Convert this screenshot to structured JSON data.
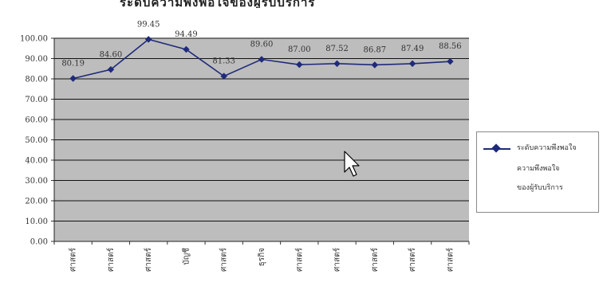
{
  "chart_data": {
    "type": "line",
    "title": "ระดับความพึงพอใจของผู้รับบริการ",
    "categories": [
      "ศาสตร์",
      "ศาสตร์",
      "ศาสตร์",
      "บัญชี",
      "ศาสตร์",
      "ธุรกิจ",
      "ศาสตร์",
      "ศาสตร์",
      "ศาสตร์",
      "ศาสตร์",
      "ศาสตร์"
    ],
    "series": [
      {
        "name": "ระดับความพึงพอใจของผู้รับบริการ",
        "values": [
          80.19,
          84.6,
          99.45,
          94.49,
          81.33,
          89.6,
          87.0,
          87.52,
          86.87,
          87.49,
          88.56
        ]
      }
    ],
    "data_labels": [
      "80.19",
      "84.60",
      "99.45",
      "94.49",
      "81.33",
      "89.60",
      "87.00",
      "87.52",
      "86.87",
      "87.49",
      "88.56"
    ],
    "ylim": [
      0,
      100
    ],
    "yticks": [
      "0.00",
      "10.00",
      "20.00",
      "30.00",
      "40.00",
      "50.00",
      "60.00",
      "70.00",
      "80.00",
      "90.00",
      "100.00"
    ],
    "grid": true,
    "legend_position": "right",
    "colors": {
      "line": "#1f2a7a",
      "plot_bg": "#bdbdbd",
      "grid": "#111111"
    }
  },
  "legend": {
    "line1": "ระดับความพึงพอใจ",
    "line2": "ความพึงพอใจ",
    "line3": "ของผู้รับบริการ"
  },
  "cursor": {
    "icon": "mouse-pointer-icon"
  }
}
